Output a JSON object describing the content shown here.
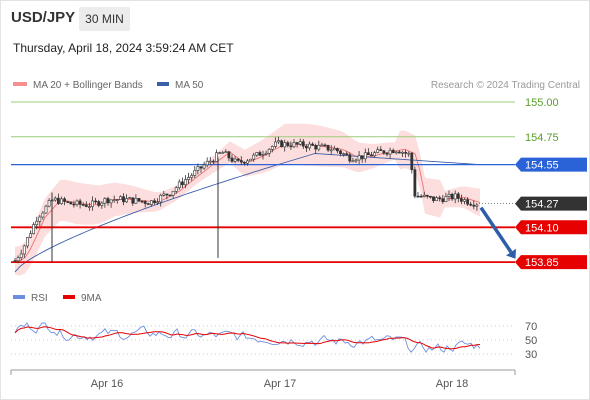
{
  "header": {
    "pair": "USD/JPY",
    "timeframe": "30 MIN",
    "timestamp": "Thursday, April 18, 2024 3:59:24 AM CET"
  },
  "legend": {
    "ma20_label": "MA 20 + Bollinger Bands",
    "ma50_label": "MA 50",
    "credit": "Research © 2024 Trading Central",
    "rsi_label": "RSI",
    "rsi_ma_label": "9MA"
  },
  "colors": {
    "bollinger": "#f8a8a8",
    "ma50": "#3a5ea8",
    "resistance": "#2a62d8",
    "support": "#e60000",
    "target_green": "#5aa02c",
    "arrow": "#2c5fa8",
    "rsi": "#6b8fe0",
    "rsi_ma": "#e60000",
    "current": "#333333"
  },
  "chart_data": [
    {
      "type": "candlestick",
      "title": "",
      "xlabel": "",
      "ylabel": "",
      "x_ticks": [
        "Apr 16",
        "Apr 17",
        "Apr 18"
      ],
      "ylim": [
        153.7,
        155.05
      ],
      "levels": [
        {
          "label": "155.00",
          "value": 155.0,
          "style": "green-line"
        },
        {
          "label": "154.75",
          "value": 154.75,
          "style": "green-line"
        },
        {
          "label": "154.55",
          "value": 154.55,
          "style": "resistance-blue"
        },
        {
          "label": "154.27",
          "value": 154.27,
          "style": "current-dark"
        },
        {
          "label": "154.10",
          "value": 154.1,
          "style": "support-red"
        },
        {
          "label": "153.85",
          "value": 153.85,
          "style": "support-red"
        }
      ],
      "projection": {
        "from": 154.27,
        "to": 153.85
      },
      "series": [
        {
          "name": "MA 20 + Bollinger Bands"
        },
        {
          "name": "MA 50"
        }
      ],
      "grid": false
    },
    {
      "type": "line",
      "title": "",
      "y_ticks": [
        "70",
        "50",
        "30"
      ],
      "ylim": [
        10,
        90
      ],
      "series": [
        {
          "name": "RSI"
        },
        {
          "name": "9MA"
        }
      ]
    }
  ]
}
